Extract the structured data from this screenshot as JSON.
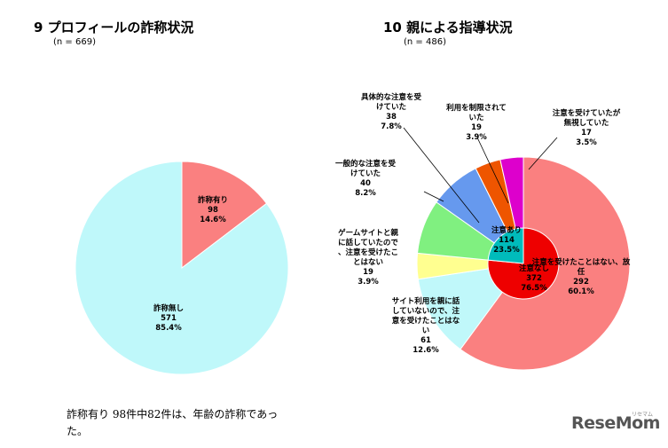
{
  "chart_data": [
    {
      "type": "pie",
      "title": "9 プロフィールの詐称状況",
      "subtitle": "(n = 669)",
      "slices": [
        {
          "label": "詐称有り",
          "value": 98,
          "percent": "14.6%",
          "color": "#fa8080"
        },
        {
          "label": "詐称無し",
          "value": 571,
          "percent": "85.4%",
          "color": "#bff8fa"
        }
      ]
    },
    {
      "type": "pie",
      "title": "10 親による指導状況",
      "subtitle": "(n = 486)",
      "outer": [
        {
          "label": "注意を受けたことはない、放任",
          "value": 292,
          "percent": "60.1%",
          "color": "#fa8080"
        },
        {
          "label": "サイト利用を親に話していないので、注意を受けたことはない",
          "value": 61,
          "percent": "12.6%",
          "color": "#c0f8fa"
        },
        {
          "label": "ゲームサイトと親に話していたので、注意を受けたことはない",
          "value": 19,
          "percent": "3.9%",
          "color": "#ffff90"
        },
        {
          "label": "一般的な注意を受けていた",
          "value": 40,
          "percent": "8.2%",
          "color": "#80f080"
        },
        {
          "label": "具体的な注意を受けていた",
          "value": 38,
          "percent": "7.8%",
          "color": "#6699ee"
        },
        {
          "label": "利用を制限されていた",
          "value": 19,
          "percent": "3.9%",
          "color": "#ee5500"
        },
        {
          "label": "注意を受けていたが無視していた",
          "value": 17,
          "percent": "3.5%",
          "color": "#dd00cc"
        }
      ],
      "inner": [
        {
          "label": "注意なし",
          "value": 372,
          "percent": "76.5%",
          "color": "#ee0000"
        },
        {
          "label": "注意あり",
          "value": 114,
          "percent": "23.5%",
          "color": "#00bbbb"
        }
      ]
    }
  ],
  "note": "詐称有り 98件中82件は、年齢の詐称であった。",
  "logo": "ReseMom",
  "logo_small": "リセマム"
}
